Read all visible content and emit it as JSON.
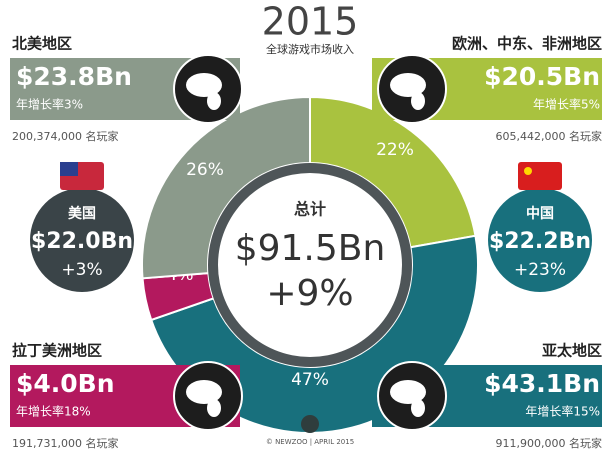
{
  "chart_data": {
    "type": "pie",
    "title": "2015",
    "subtitle": "全球游戏市场收入",
    "categories": [
      "欧洲、中东、非洲地区",
      "亚太地区",
      "拉丁美洲地区",
      "北美地区"
    ],
    "values": [
      22,
      47,
      4,
      26
    ],
    "value_labels": [
      "22%",
      "47%",
      "4%",
      "26%"
    ],
    "colors": [
      "#a9c23f",
      "#18707d",
      "#b3195e",
      "#8b9a8b"
    ],
    "regions": [
      {
        "revenue": "$20.5Bn",
        "growth": "年增长率5%",
        "players": "605,442,000 名玩家"
      },
      {
        "revenue": "$43.1Bn",
        "growth": "年增长率15%",
        "players": "911,900,000 名玩家"
      },
      {
        "revenue": "$4.0Bn",
        "growth": "年增长率18%",
        "players": "191,731,000 名玩家"
      },
      {
        "revenue": "$23.8Bn",
        "growth": "年增长率3%",
        "players": "200,374,000 名玩家"
      }
    ],
    "total": {
      "label": "总计",
      "value": "$91.5Bn",
      "growth": "+9%"
    },
    "countries": [
      {
        "name": "美国",
        "revenue": "$22.0Bn",
        "growth": "+3%"
      },
      {
        "name": "中国",
        "revenue": "$22.2Bn",
        "growth": "+23%"
      }
    ],
    "footer": "© NEWZOO | APRIL 2015"
  }
}
